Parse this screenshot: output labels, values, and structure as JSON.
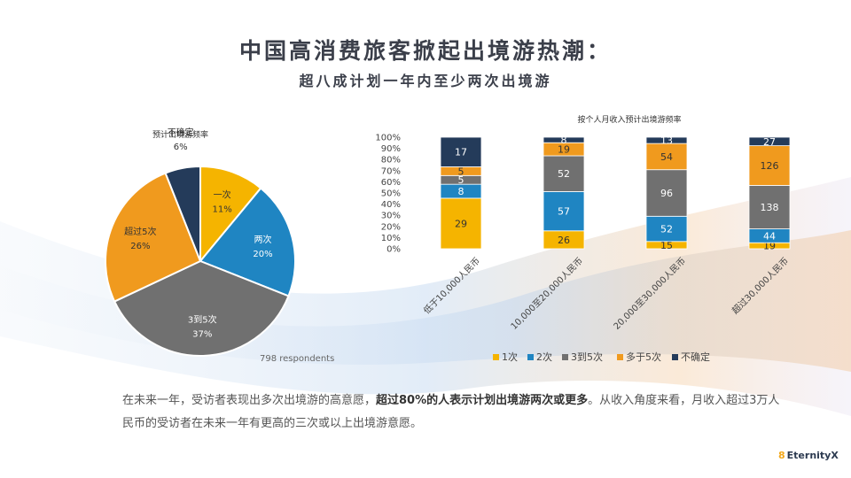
{
  "page": {
    "title": "中国高消费旅客掀起出境游热潮：",
    "subtitle": "超八成计划一年内至少两次出境游",
    "respondents": "798 respondents",
    "body_text_1": "在未来一年，受访者表现出多次出境游的高意愿，",
    "body_text_bold": "超过80%的人表示计划出境游两次或更多",
    "body_text_2": "。从收入角度来看，月收入超过3万人民币的受访者在未来一年有更高的三次或以上出境游意愿。",
    "logo_text": "EternityX"
  },
  "chart_data": [
    {
      "type": "pie",
      "title": "预计出境游频率",
      "slices": [
        {
          "label": "一次",
          "value": 11,
          "pct_label": "11%",
          "color": "#f5b400"
        },
        {
          "label": "两次",
          "value": 20,
          "pct_label": "20%",
          "color": "#1f85c2"
        },
        {
          "label": "3到5次",
          "value": 37,
          "pct_label": "37%",
          "color": "#707070"
        },
        {
          "label": "超过5次",
          "value": 26,
          "pct_label": "26%",
          "color": "#f09a1e"
        },
        {
          "label": "不确定",
          "value": 6,
          "pct_label": "6%",
          "color": "#243b5a"
        }
      ]
    },
    {
      "type": "bar",
      "stacked": "percent",
      "title": "按个人月收入预计出境游频率",
      "categories": [
        "低于10,000人民币",
        "10,000至20,000人民币",
        "20,000至30,000人民币",
        "超过30,000人民币"
      ],
      "y_ticks": [
        "0%",
        "10%",
        "20%",
        "30%",
        "40%",
        "50%",
        "60%",
        "70%",
        "80%",
        "90%",
        "100%"
      ],
      "ylim": [
        0,
        100
      ],
      "legend_position": "bottom",
      "series": [
        {
          "name": "1次",
          "color": "#f5b400",
          "values": [
            29,
            26,
            15,
            19
          ]
        },
        {
          "name": "2次",
          "color": "#1f85c2",
          "values": [
            8,
            57,
            52,
            44
          ]
        },
        {
          "name": "3到5次",
          "color": "#707070",
          "values": [
            5,
            52,
            96,
            138
          ]
        },
        {
          "name": "多于5次",
          "color": "#f09a1e",
          "values": [
            5,
            19,
            54,
            126
          ]
        },
        {
          "name": "不确定",
          "color": "#243b5a",
          "values": [
            17,
            8,
            13,
            27
          ]
        }
      ]
    }
  ]
}
